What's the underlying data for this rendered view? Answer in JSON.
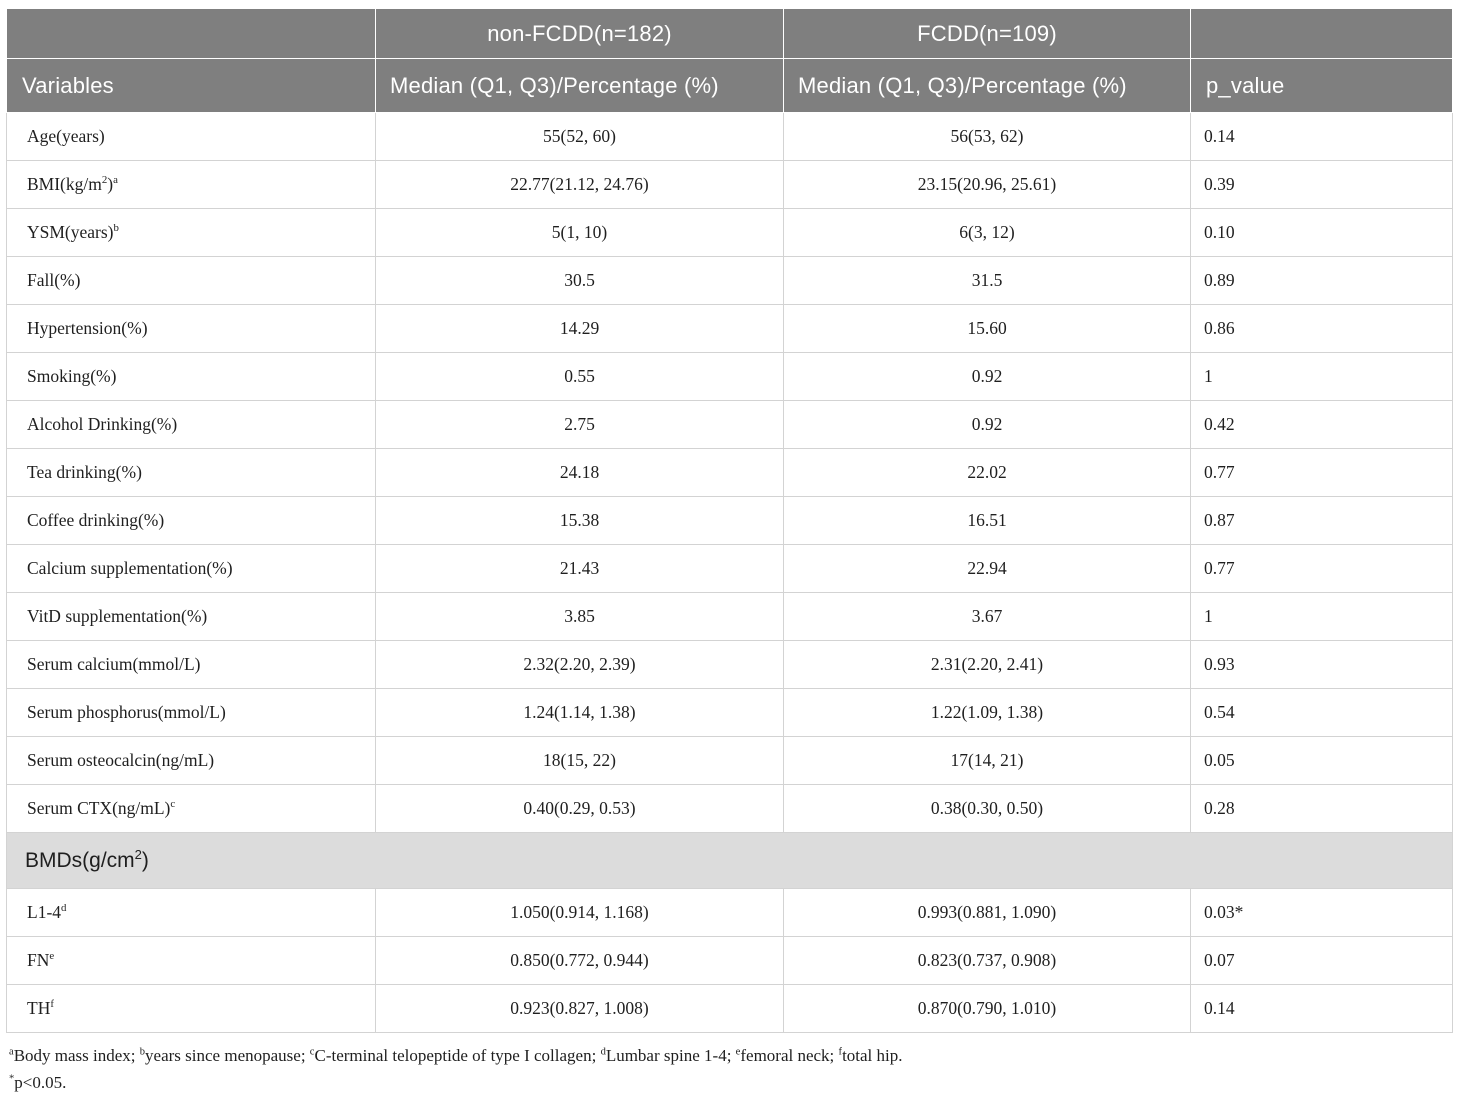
{
  "colors": {
    "header_bg": "#7f7f7f",
    "header_text": "#ffffff",
    "section_bg": "#dcdcdc",
    "border": "#d3d3d3",
    "text": "#1f1f1f"
  },
  "table": {
    "header": {
      "group_non_fcdd": "non-FCDD(n=182)",
      "group_fcdd": "FCDD(n=109)",
      "col_variables": "Variables",
      "col_non_fcdd": "Median (Q1, Q3)/Percentage (%)",
      "col_fcdd": "Median (Q1, Q3)/Percentage (%)",
      "col_p": "p_value"
    },
    "rows": [
      {
        "label": "Age(years)",
        "non_fcdd": "55(52, 60)",
        "fcdd": "56(53, 62)",
        "p": "0.14"
      },
      {
        "label": [
          {
            "t": "BMI(kg/m"
          },
          {
            "s": "2"
          },
          {
            "t": ")"
          },
          {
            "s": "a"
          }
        ],
        "non_fcdd": "22.77(21.12, 24.76)",
        "fcdd": "23.15(20.96, 25.61)",
        "p": "0.39"
      },
      {
        "label": [
          {
            "t": "YSM(years)"
          },
          {
            "s": "b"
          }
        ],
        "non_fcdd": "5(1, 10)",
        "fcdd": "6(3, 12)",
        "p": "0.10"
      },
      {
        "label": "Fall(%)",
        "non_fcdd": "30.5",
        "fcdd": "31.5",
        "p": "0.89"
      },
      {
        "label": "Hypertension(%)",
        "non_fcdd": "14.29",
        "fcdd": "15.60",
        "p": "0.86"
      },
      {
        "label": "Smoking(%)",
        "non_fcdd": "0.55",
        "fcdd": "0.92",
        "p": "1"
      },
      {
        "label": "Alcohol Drinking(%)",
        "non_fcdd": "2.75",
        "fcdd": "0.92",
        "p": "0.42"
      },
      {
        "label": "Tea drinking(%)",
        "non_fcdd": "24.18",
        "fcdd": "22.02",
        "p": "0.77"
      },
      {
        "label": "Coffee drinking(%)",
        "non_fcdd": "15.38",
        "fcdd": "16.51",
        "p": "0.87"
      },
      {
        "label": "Calcium supplementation(%)",
        "non_fcdd": "21.43",
        "fcdd": "22.94",
        "p": "0.77"
      },
      {
        "label": "VitD supplementation(%)",
        "non_fcdd": "3.85",
        "fcdd": "3.67",
        "p": "1"
      },
      {
        "label": "Serum calcium(mmol/L)",
        "non_fcdd": "2.32(2.20, 2.39)",
        "fcdd": "2.31(2.20, 2.41)",
        "p": "0.93"
      },
      {
        "label": "Serum phosphorus(mmol/L)",
        "non_fcdd": "1.24(1.14, 1.38)",
        "fcdd": "1.22(1.09, 1.38)",
        "p": "0.54"
      },
      {
        "label": "Serum osteocalcin(ng/mL)",
        "non_fcdd": "18(15, 22)",
        "fcdd": "17(14, 21)",
        "p": "0.05"
      },
      {
        "label": [
          {
            "t": "Serum CTX(ng/mL)"
          },
          {
            "s": "c"
          }
        ],
        "non_fcdd": "0.40(0.29, 0.53)",
        "fcdd": "0.38(0.30, 0.50)",
        "p": "0.28"
      },
      {
        "type": "section",
        "label": [
          {
            "t": "BMDs(g/cm"
          },
          {
            "s": "2"
          },
          {
            "t": ")"
          }
        ]
      },
      {
        "label": [
          {
            "t": "L1-4"
          },
          {
            "s": "d"
          }
        ],
        "non_fcdd": "1.050(0.914, 1.168)",
        "fcdd": "0.993(0.881, 1.090)",
        "p": "0.03*"
      },
      {
        "label": [
          {
            "t": "FN"
          },
          {
            "s": "e"
          }
        ],
        "non_fcdd": "0.850(0.772, 0.944)",
        "fcdd": "0.823(0.737, 0.908)",
        "p": "0.07"
      },
      {
        "label": [
          {
            "t": "TH"
          },
          {
            "s": "f"
          }
        ],
        "non_fcdd": "0.923(0.827, 1.008)",
        "fcdd": "0.870(0.790, 1.010)",
        "p": "0.14"
      }
    ]
  },
  "footnotes": {
    "abbreviations": [
      {
        "s": "a"
      },
      {
        "t": "Body mass index; "
      },
      {
        "s": "b"
      },
      {
        "t": "years since menopause; "
      },
      {
        "s": "c"
      },
      {
        "t": "C-terminal telopeptide of type I collagen; "
      },
      {
        "s": "d"
      },
      {
        "t": "Lumbar spine 1-4; "
      },
      {
        "s": "e"
      },
      {
        "t": "femoral neck; "
      },
      {
        "s": "f"
      },
      {
        "t": "total hip."
      }
    ],
    "significance": [
      {
        "s": "*"
      },
      {
        "t": "p<0.05."
      }
    ]
  }
}
